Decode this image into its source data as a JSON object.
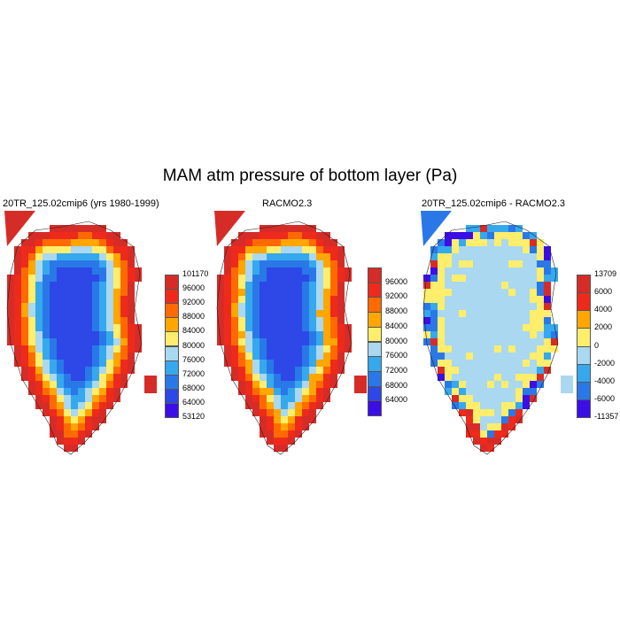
{
  "title": "MAM atm pressure of bottom layer (Pa)",
  "panels": [
    {
      "title": "20TR_125.02cmip6 (yrs 1980-1999)",
      "colorbar": {
        "labels": [
          "101170",
          "96000",
          "92000",
          "88000",
          "84000",
          "80000",
          "76000",
          "72000",
          "68000",
          "64000",
          "53120"
        ],
        "colors": [
          "#d62c28",
          "#ee2a1c",
          "#ff6a00",
          "#ffa600",
          "#ffee6b",
          "#a9d8f0",
          "#36a8ee",
          "#2a78e8",
          "#2d48e6",
          "#3c0ee6"
        ]
      }
    },
    {
      "title": "RACMO2.3",
      "colorbar": {
        "labels": [
          "96000",
          "92000",
          "88000",
          "84000",
          "80000",
          "76000",
          "72000",
          "68000",
          "64000"
        ],
        "colors": [
          "#d62c28",
          "#ee2a1c",
          "#ff6a00",
          "#ffa600",
          "#ffee6b",
          "#a9d8f0",
          "#36a8ee",
          "#2a78e8",
          "#2d48e6",
          "#3c0ee6"
        ]
      }
    },
    {
      "title": "20TR_125.02cmip6 - RACMO2.3",
      "colorbar": {
        "labels": [
          "13709",
          "6000",
          "4000",
          "2000",
          "0",
          "-2000",
          "-4000",
          "-6000",
          "-11357"
        ],
        "colors": [
          "#d62c28",
          "#ee2a1c",
          "#ffa600",
          "#ffee6b",
          "#a9d8f0",
          "#36a8ee",
          "#2a78e8",
          "#3c0ee6"
        ]
      }
    }
  ]
}
